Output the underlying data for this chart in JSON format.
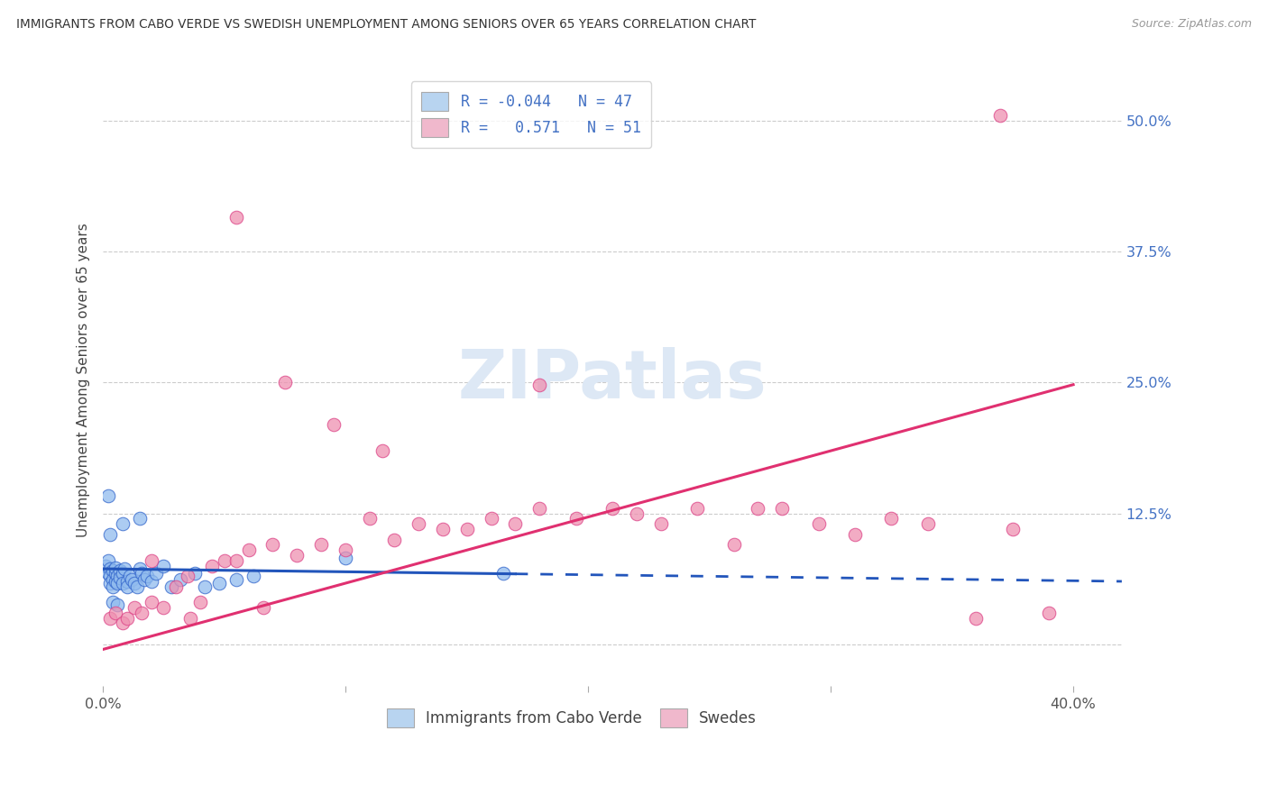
{
  "title": "IMMIGRANTS FROM CABO VERDE VS SWEDISH UNEMPLOYMENT AMONG SENIORS OVER 65 YEARS CORRELATION CHART",
  "source": "Source: ZipAtlas.com",
  "ylabel": "Unemployment Among Seniors over 65 years",
  "xlim": [
    0.0,
    0.42
  ],
  "ylim": [
    -0.04,
    0.545
  ],
  "yticks_right": [
    0.0,
    0.125,
    0.25,
    0.375,
    0.5
  ],
  "ytick_labels_right": [
    "",
    "12.5%",
    "25.0%",
    "37.5%",
    "50.0%"
  ],
  "legend1_label": "R = -0.044   N = 47",
  "legend2_label": "R =   0.571   N = 51",
  "legend1_facecolor": "#b8d4f0",
  "legend2_facecolor": "#f0b8cc",
  "line1_color": "#2255bb",
  "line2_color": "#e03070",
  "scatter1_color": "#90bbee",
  "scatter2_color": "#ee90b0",
  "scatter1_edge": "#3366cc",
  "scatter2_edge": "#dd4488",
  "background_color": "#ffffff",
  "watermark_color": "#dde8f5",
  "grid_color": "#cccccc",
  "title_color": "#333333",
  "right_axis_color": "#4472c4",
  "cabo_x": [
    0.001,
    0.002,
    0.002,
    0.003,
    0.003,
    0.003,
    0.004,
    0.004,
    0.004,
    0.005,
    0.005,
    0.005,
    0.006,
    0.006,
    0.007,
    0.007,
    0.008,
    0.008,
    0.009,
    0.01,
    0.01,
    0.011,
    0.012,
    0.013,
    0.014,
    0.015,
    0.016,
    0.017,
    0.018,
    0.02,
    0.022,
    0.025,
    0.028,
    0.032,
    0.038,
    0.042,
    0.048,
    0.055,
    0.062,
    0.015,
    0.008,
    0.003,
    0.004,
    0.006,
    0.1,
    0.165,
    0.002
  ],
  "cabo_y": [
    0.075,
    0.08,
    0.068,
    0.072,
    0.065,
    0.058,
    0.07,
    0.062,
    0.055,
    0.068,
    0.06,
    0.073,
    0.065,
    0.058,
    0.07,
    0.063,
    0.068,
    0.058,
    0.072,
    0.06,
    0.055,
    0.065,
    0.062,
    0.058,
    0.055,
    0.072,
    0.068,
    0.062,
    0.065,
    0.06,
    0.068,
    0.075,
    0.055,
    0.062,
    0.068,
    0.055,
    0.058,
    0.062,
    0.065,
    0.12,
    0.115,
    0.105,
    0.04,
    0.038,
    0.082,
    0.068,
    0.142
  ],
  "swedes_x": [
    0.003,
    0.005,
    0.008,
    0.01,
    0.013,
    0.016,
    0.02,
    0.025,
    0.03,
    0.036,
    0.04,
    0.045,
    0.05,
    0.055,
    0.06,
    0.066,
    0.07,
    0.08,
    0.09,
    0.1,
    0.11,
    0.12,
    0.13,
    0.14,
    0.15,
    0.16,
    0.17,
    0.18,
    0.195,
    0.21,
    0.22,
    0.23,
    0.245,
    0.26,
    0.27,
    0.28,
    0.295,
    0.31,
    0.325,
    0.34,
    0.36,
    0.375,
    0.39,
    0.02,
    0.035,
    0.055,
    0.075,
    0.095,
    0.115,
    0.18,
    0.37
  ],
  "swedes_y": [
    0.025,
    0.03,
    0.02,
    0.025,
    0.035,
    0.03,
    0.04,
    0.035,
    0.055,
    0.025,
    0.04,
    0.075,
    0.08,
    0.08,
    0.09,
    0.035,
    0.095,
    0.085,
    0.095,
    0.09,
    0.12,
    0.1,
    0.115,
    0.11,
    0.11,
    0.12,
    0.115,
    0.13,
    0.12,
    0.13,
    0.125,
    0.115,
    0.13,
    0.095,
    0.13,
    0.13,
    0.115,
    0.105,
    0.12,
    0.115,
    0.025,
    0.11,
    0.03,
    0.08,
    0.065,
    0.408,
    0.25,
    0.21,
    0.185,
    0.248,
    0.505
  ],
  "cv_line_x": [
    0.0,
    0.42
  ],
  "cv_line_y": [
    0.072,
    0.06
  ],
  "sw_line_x": [
    0.0,
    0.4
  ],
  "sw_line_y": [
    -0.005,
    0.248
  ]
}
